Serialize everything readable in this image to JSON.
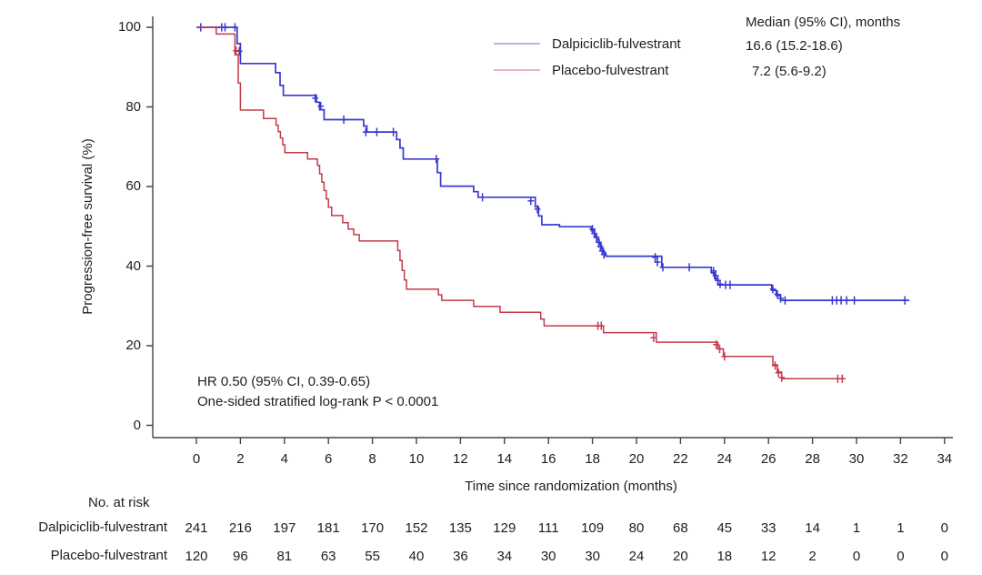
{
  "figure": {
    "background": "#ffffff",
    "text_color": "#1e1e1e",
    "axis_color": "#454545"
  },
  "axes": {
    "x": {
      "label": "Time since randomization (months)",
      "range": [
        0,
        34
      ]
    },
    "y": {
      "label": "Progression-free survival (%)",
      "range": [
        0,
        100
      ]
    }
  },
  "legend": {
    "header": "Median (95% CI), months",
    "entries": [
      {
        "label": "Dalpiciclib-fulvestrant",
        "median": "16.6 (15.2-18.6)",
        "swatch_color": "#9b9be4"
      },
      {
        "label": "Placebo-fulvestrant",
        "median": "7.2 (5.6-9.2)",
        "swatch_color": "#e59aa5"
      }
    ]
  },
  "annotations": {
    "hr": "HR 0.50 (95% CI, 0.39-0.65)",
    "pvalue": "One-sided stratified log-rank P < 0.0001"
  },
  "at_risk": {
    "title": "No. at risk",
    "timepoints": [
      0,
      2,
      4,
      6,
      8,
      10,
      12,
      14,
      16,
      18,
      20,
      22,
      24,
      26,
      28,
      30,
      32,
      34
    ],
    "rows": [
      {
        "label": "Dalpiciclib-fulvestrant",
        "counts": [
          241,
          216,
          197,
          181,
          170,
          152,
          135,
          129,
          111,
          109,
          80,
          68,
          45,
          33,
          14,
          1,
          1,
          0
        ]
      },
      {
        "label": "Placebo-fulvestrant",
        "counts": [
          120,
          96,
          81,
          63,
          55,
          40,
          36,
          34,
          30,
          30,
          24,
          20,
          18,
          12,
          2,
          0,
          0,
          0
        ]
      }
    ]
  },
  "chart_data": {
    "type": "line",
    "subtype": "kaplan-meier-step-curves",
    "title": "",
    "xlabel": "Time since randomization (months)",
    "ylabel": "Progression-free survival (%)",
    "xlim": [
      0,
      34
    ],
    "ylim": [
      0,
      100
    ],
    "x_ticks": [
      0,
      2,
      4,
      6,
      8,
      10,
      12,
      14,
      16,
      18,
      20,
      22,
      24,
      26,
      28,
      30,
      32,
      34
    ],
    "y_ticks": [
      0,
      20,
      40,
      60,
      80,
      100
    ],
    "grid": false,
    "legend_position": "top-right-inside",
    "annotations": [
      "HR 0.50 (95% CI, 0.39-0.65)",
      "One-sided stratified log-rank P < 0.0001"
    ],
    "series": [
      {
        "name": "Dalpiciclib-fulvestrant",
        "color": "#3939d2",
        "median_95ci_months": "16.6 (15.2-18.6)",
        "end_time": 32.4,
        "steps": [
          [
            0,
            100
          ],
          [
            1.85,
            95.9
          ],
          [
            2.0,
            90.9
          ],
          [
            3.6,
            88.6
          ],
          [
            3.8,
            85.4
          ],
          [
            3.95,
            82.9
          ],
          [
            5.45,
            81.2
          ],
          [
            5.6,
            79.3
          ],
          [
            5.8,
            76.8
          ],
          [
            7.6,
            75.2
          ],
          [
            7.75,
            73.7
          ],
          [
            9.1,
            71.8
          ],
          [
            9.25,
            69.7
          ],
          [
            9.4,
            66.9
          ],
          [
            10.95,
            63.5
          ],
          [
            11.1,
            60.1
          ],
          [
            12.6,
            58.7
          ],
          [
            12.8,
            57.3
          ],
          [
            15.4,
            54.9
          ],
          [
            15.55,
            52.6
          ],
          [
            15.7,
            50.4
          ],
          [
            16.5,
            49.9
          ],
          [
            17.95,
            48.9
          ],
          [
            18.1,
            47.6
          ],
          [
            18.2,
            46.6
          ],
          [
            18.3,
            45.5
          ],
          [
            18.4,
            44.4
          ],
          [
            18.5,
            43.4
          ],
          [
            18.6,
            42.5
          ],
          [
            21.15,
            39.7
          ],
          [
            23.4,
            38.3
          ],
          [
            23.55,
            36.9
          ],
          [
            23.7,
            35.3
          ],
          [
            26.15,
            33.9
          ],
          [
            26.35,
            32.6
          ],
          [
            26.55,
            31.4
          ]
        ],
        "censor_marks": [
          [
            0.2,
            100
          ],
          [
            1.15,
            100
          ],
          [
            1.3,
            100
          ],
          [
            1.75,
            100
          ],
          [
            1.95,
            94.0
          ],
          [
            5.4,
            82.2
          ],
          [
            5.65,
            80.2
          ],
          [
            6.7,
            76.8
          ],
          [
            7.7,
            73.7
          ],
          [
            8.2,
            73.7
          ],
          [
            8.95,
            73.7
          ],
          [
            10.9,
            66.9
          ],
          [
            13.0,
            57.3
          ],
          [
            15.2,
            56.4
          ],
          [
            15.5,
            54.3
          ],
          [
            18.0,
            49.3
          ],
          [
            18.08,
            48.2
          ],
          [
            18.18,
            47.2
          ],
          [
            18.28,
            46.0
          ],
          [
            18.36,
            44.9
          ],
          [
            18.44,
            43.8
          ],
          [
            18.52,
            42.9
          ],
          [
            20.85,
            42.2
          ],
          [
            20.95,
            41.0
          ],
          [
            21.2,
            39.7
          ],
          [
            22.4,
            39.7
          ],
          [
            23.5,
            38.8
          ],
          [
            23.6,
            37.6
          ],
          [
            23.7,
            36.4
          ],
          [
            23.8,
            35.5
          ],
          [
            24.05,
            35.3
          ],
          [
            24.25,
            35.3
          ],
          [
            26.2,
            34.2
          ],
          [
            26.4,
            32.9
          ],
          [
            26.55,
            31.9
          ],
          [
            26.75,
            31.4
          ],
          [
            28.9,
            31.4
          ],
          [
            29.1,
            31.4
          ],
          [
            29.3,
            31.4
          ],
          [
            29.55,
            31.4
          ],
          [
            29.9,
            31.4
          ],
          [
            32.2,
            31.4
          ]
        ]
      },
      {
        "name": "Placebo-fulvestrant",
        "color": "#c23b49",
        "median_95ci_months": "7.2 (5.6-9.2)",
        "end_time": 29.5,
        "steps": [
          [
            0,
            100
          ],
          [
            0.9,
            98.3
          ],
          [
            1.75,
            93.1
          ],
          [
            1.9,
            86.0
          ],
          [
            2.0,
            79.2
          ],
          [
            3.05,
            77.1
          ],
          [
            3.62,
            75.4
          ],
          [
            3.72,
            73.8
          ],
          [
            3.82,
            72.2
          ],
          [
            3.92,
            70.5
          ],
          [
            4.02,
            68.5
          ],
          [
            5.05,
            66.9
          ],
          [
            5.5,
            65.3
          ],
          [
            5.6,
            63.2
          ],
          [
            5.7,
            61.1
          ],
          [
            5.8,
            59.0
          ],
          [
            5.9,
            56.9
          ],
          [
            6.0,
            54.8
          ],
          [
            6.15,
            52.7
          ],
          [
            6.65,
            50.9
          ],
          [
            6.9,
            49.3
          ],
          [
            7.15,
            47.9
          ],
          [
            7.4,
            46.3
          ],
          [
            9.15,
            43.9
          ],
          [
            9.25,
            41.4
          ],
          [
            9.35,
            38.9
          ],
          [
            9.45,
            36.5
          ],
          [
            9.55,
            34.2
          ],
          [
            11.0,
            32.8
          ],
          [
            11.15,
            31.4
          ],
          [
            12.6,
            29.9
          ],
          [
            13.8,
            28.4
          ],
          [
            15.65,
            26.7
          ],
          [
            15.8,
            25.0
          ],
          [
            18.5,
            23.3
          ],
          [
            20.9,
            20.9
          ],
          [
            23.7,
            19.2
          ],
          [
            23.95,
            17.3
          ],
          [
            26.2,
            15.2
          ],
          [
            26.4,
            13.4
          ],
          [
            26.6,
            11.7
          ]
        ],
        "censor_marks": [
          [
            1.8,
            94.1
          ],
          [
            18.25,
            25.0
          ],
          [
            18.4,
            25.0
          ],
          [
            20.78,
            22.0
          ],
          [
            23.62,
            20.3
          ],
          [
            23.78,
            19.2
          ],
          [
            24.0,
            17.3
          ],
          [
            26.3,
            15.0
          ],
          [
            26.45,
            13.2
          ],
          [
            26.6,
            12.0
          ],
          [
            29.15,
            11.7
          ],
          [
            29.35,
            11.7
          ]
        ]
      }
    ]
  }
}
